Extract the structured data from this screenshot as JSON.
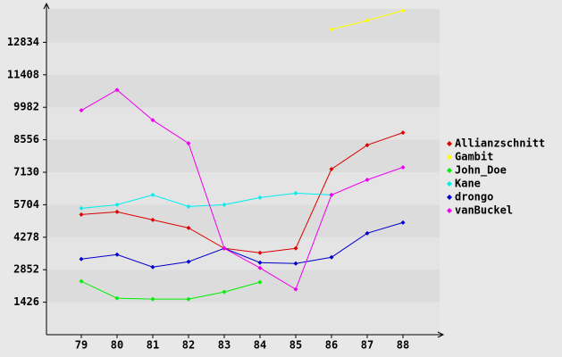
{
  "chart_data": {
    "type": "line",
    "categories": [
      "79",
      "80",
      "81",
      "82",
      "83",
      "84",
      "85",
      "86",
      "87",
      "88"
    ],
    "series": [
      {
        "name": "Allianzschnitt",
        "color": "#dd0000",
        "values": [
          5274,
          5392,
          5040,
          4688,
          3790,
          3594,
          3790,
          7267,
          8322,
          8869
        ]
      },
      {
        "name": "Gambit",
        "color": "#ffff00",
        "values": [
          null,
          null,
          null,
          null,
          null,
          null,
          null,
          13401,
          13792,
          14230
        ]
      },
      {
        "name": "John_Doe",
        "color": "#00ee00",
        "values": [
          2344,
          1602,
          1563,
          1563,
          1875,
          2305,
          null,
          null,
          null,
          null
        ]
      },
      {
        "name": "Kane",
        "color": "#00eeee",
        "values": [
          5548,
          5704,
          6134,
          5626,
          5704,
          6017,
          6212,
          6134,
          null,
          null
        ]
      },
      {
        "name": "drongo",
        "color": "#0000cc",
        "values": [
          3321,
          3516,
          2969,
          3204,
          3790,
          3165,
          3126,
          3399,
          4454,
          4923
        ]
      },
      {
        "name": "vanBuckel",
        "color": "#ee00ee",
        "values": [
          9846,
          10744,
          9416,
          8400,
          3790,
          2930,
          1993,
          6134,
          6798,
          7345
        ]
      }
    ],
    "ylim": [
      0,
      14300
    ],
    "yticks": [
      1426,
      2852,
      4278,
      5704,
      7130,
      8556,
      9982,
      11408,
      12834
    ],
    "grid": true
  }
}
